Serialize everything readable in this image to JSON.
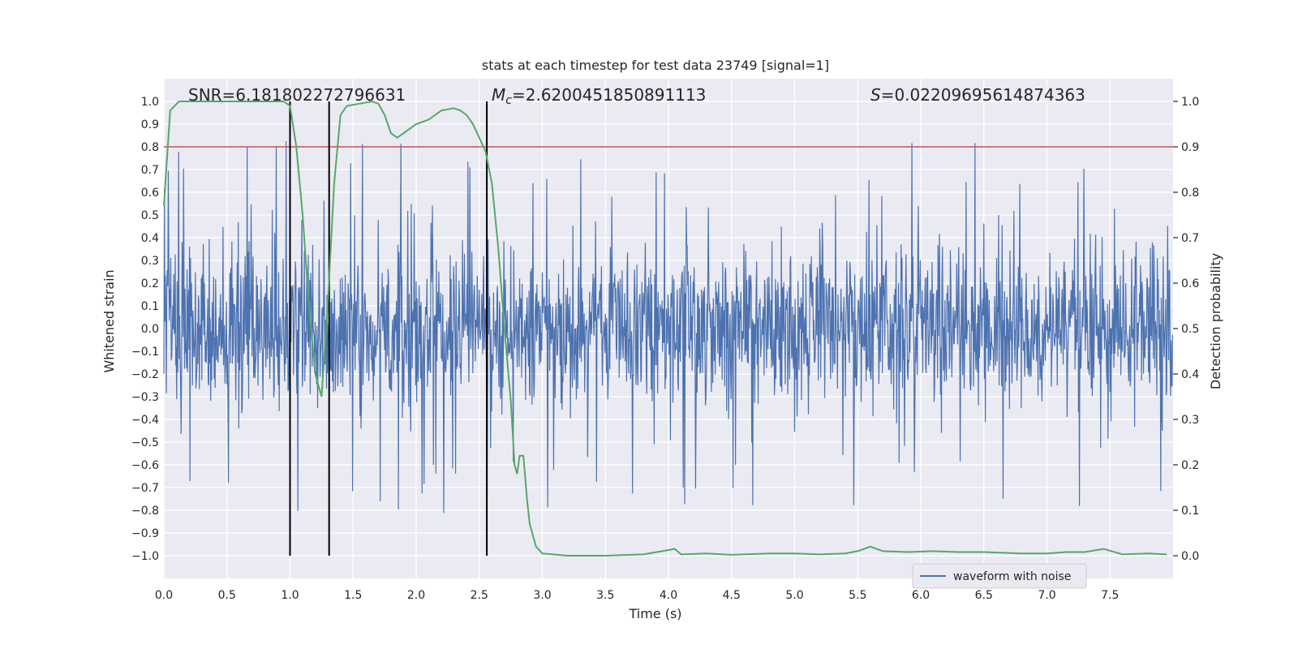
{
  "chart_data": {
    "type": "line",
    "title": "stats at each timestep for test data 23749 [signal=1]",
    "xlabel": "Time (s)",
    "ylabel_left": "Whitened strain",
    "ylabel_right": "Detection probability",
    "xlim": [
      0,
      8
    ],
    "ylim_left": [
      -1.1,
      1.1
    ],
    "ylim_right": [
      -0.05,
      1.05
    ],
    "x_ticks": [
      0.0,
      0.5,
      1.0,
      1.5,
      2.0,
      2.5,
      3.0,
      3.5,
      4.0,
      4.5,
      5.0,
      5.5,
      6.0,
      6.5,
      7.0,
      7.5
    ],
    "x_tick_labels": [
      "0.0",
      "0.5",
      "1.0",
      "1.5",
      "2.0",
      "2.5",
      "3.0",
      "3.5",
      "4.0",
      "4.5",
      "5.0",
      "5.5",
      "6.0",
      "6.5",
      "7.0",
      "7.5"
    ],
    "y_left_ticks": [
      1.0,
      0.9,
      0.8,
      0.7,
      0.6,
      0.5,
      0.4,
      0.3,
      0.2,
      0.1,
      0.0,
      -0.1,
      -0.2,
      -0.3,
      -0.4,
      -0.5,
      -0.6,
      -0.7,
      -0.8,
      -0.9,
      -1.0
    ],
    "y_left_tick_labels": [
      "1.0",
      "0.9",
      "0.8",
      "0.7",
      "0.6",
      "0.5",
      "0.4",
      "0.3",
      "0.2",
      "0.1",
      "0.0",
      "−0.1",
      "−0.2",
      "−0.3",
      "−0.4",
      "−0.5",
      "−0.6",
      "−0.7",
      "−0.8",
      "−0.9",
      "−1.0"
    ],
    "y_right_ticks": [
      1.0,
      0.9,
      0.8,
      0.7,
      0.6,
      0.5,
      0.4,
      0.3,
      0.2,
      0.1,
      0.0
    ],
    "y_right_tick_labels": [
      "1.0",
      "0.9",
      "0.8",
      "0.7",
      "0.6",
      "0.5",
      "0.4",
      "0.3",
      "0.2",
      "0.1",
      "0.0"
    ],
    "annotations": {
      "snr": "SNR=6.181802272796631",
      "mc_symbol": "M",
      "mc_sub": "c",
      "mc_value": "=2.6200451850891113",
      "s_symbol": "S",
      "s_value": "=0.02209695614874363"
    },
    "threshold_left": 0.8,
    "vertical_lines_x": [
      1.0,
      1.31,
      2.56
    ],
    "waveform": {
      "name": "waveform with noise",
      "color": "#4c72b0",
      "sample_rate": 256,
      "seed": 23749,
      "approx_envelope": 0.4,
      "approx_peak_max": 1.0,
      "approx_peak_min": -1.0
    },
    "detection_probability": {
      "color": "#55a868",
      "x": [
        0.0,
        0.05,
        0.12,
        0.2,
        0.5,
        0.8,
        0.95,
        1.0,
        1.05,
        1.1,
        1.15,
        1.2,
        1.25,
        1.3,
        1.35,
        1.4,
        1.45,
        1.55,
        1.65,
        1.7,
        1.75,
        1.8,
        1.85,
        1.9,
        2.0,
        2.1,
        2.2,
        2.3,
        2.35,
        2.4,
        2.45,
        2.5,
        2.55,
        2.6,
        2.65,
        2.7,
        2.75,
        2.78,
        2.8,
        2.82,
        2.85,
        2.88,
        2.9,
        2.95,
        3.0,
        3.2,
        3.5,
        3.8,
        3.95,
        4.05,
        4.1,
        4.3,
        4.5,
        4.8,
        5.0,
        5.2,
        5.4,
        5.5,
        5.6,
        5.7,
        5.9,
        6.1,
        6.3,
        6.5,
        6.8,
        7.0,
        7.15,
        7.3,
        7.45,
        7.6,
        7.8,
        7.95
      ],
      "values": [
        0.77,
        0.98,
        1.0,
        1.0,
        1.0,
        1.0,
        1.0,
        0.99,
        0.9,
        0.75,
        0.55,
        0.4,
        0.35,
        0.56,
        0.82,
        0.97,
        0.99,
        0.995,
        1.0,
        0.995,
        0.97,
        0.93,
        0.92,
        0.93,
        0.95,
        0.96,
        0.98,
        0.985,
        0.98,
        0.97,
        0.95,
        0.92,
        0.89,
        0.82,
        0.68,
        0.5,
        0.34,
        0.2,
        0.18,
        0.22,
        0.22,
        0.12,
        0.07,
        0.02,
        0.005,
        0.0,
        0.0,
        0.003,
        0.01,
        0.015,
        0.003,
        0.005,
        0.002,
        0.005,
        0.005,
        0.003,
        0.005,
        0.01,
        0.02,
        0.01,
        0.008,
        0.01,
        0.008,
        0.008,
        0.005,
        0.005,
        0.008,
        0.008,
        0.015,
        0.003,
        0.005,
        0.003
      ]
    },
    "threshold_color": "#c44e52",
    "vline_color": "#000000",
    "plot_background": "#eaeaf2",
    "grid": true,
    "legend_position": "lower-right"
  }
}
